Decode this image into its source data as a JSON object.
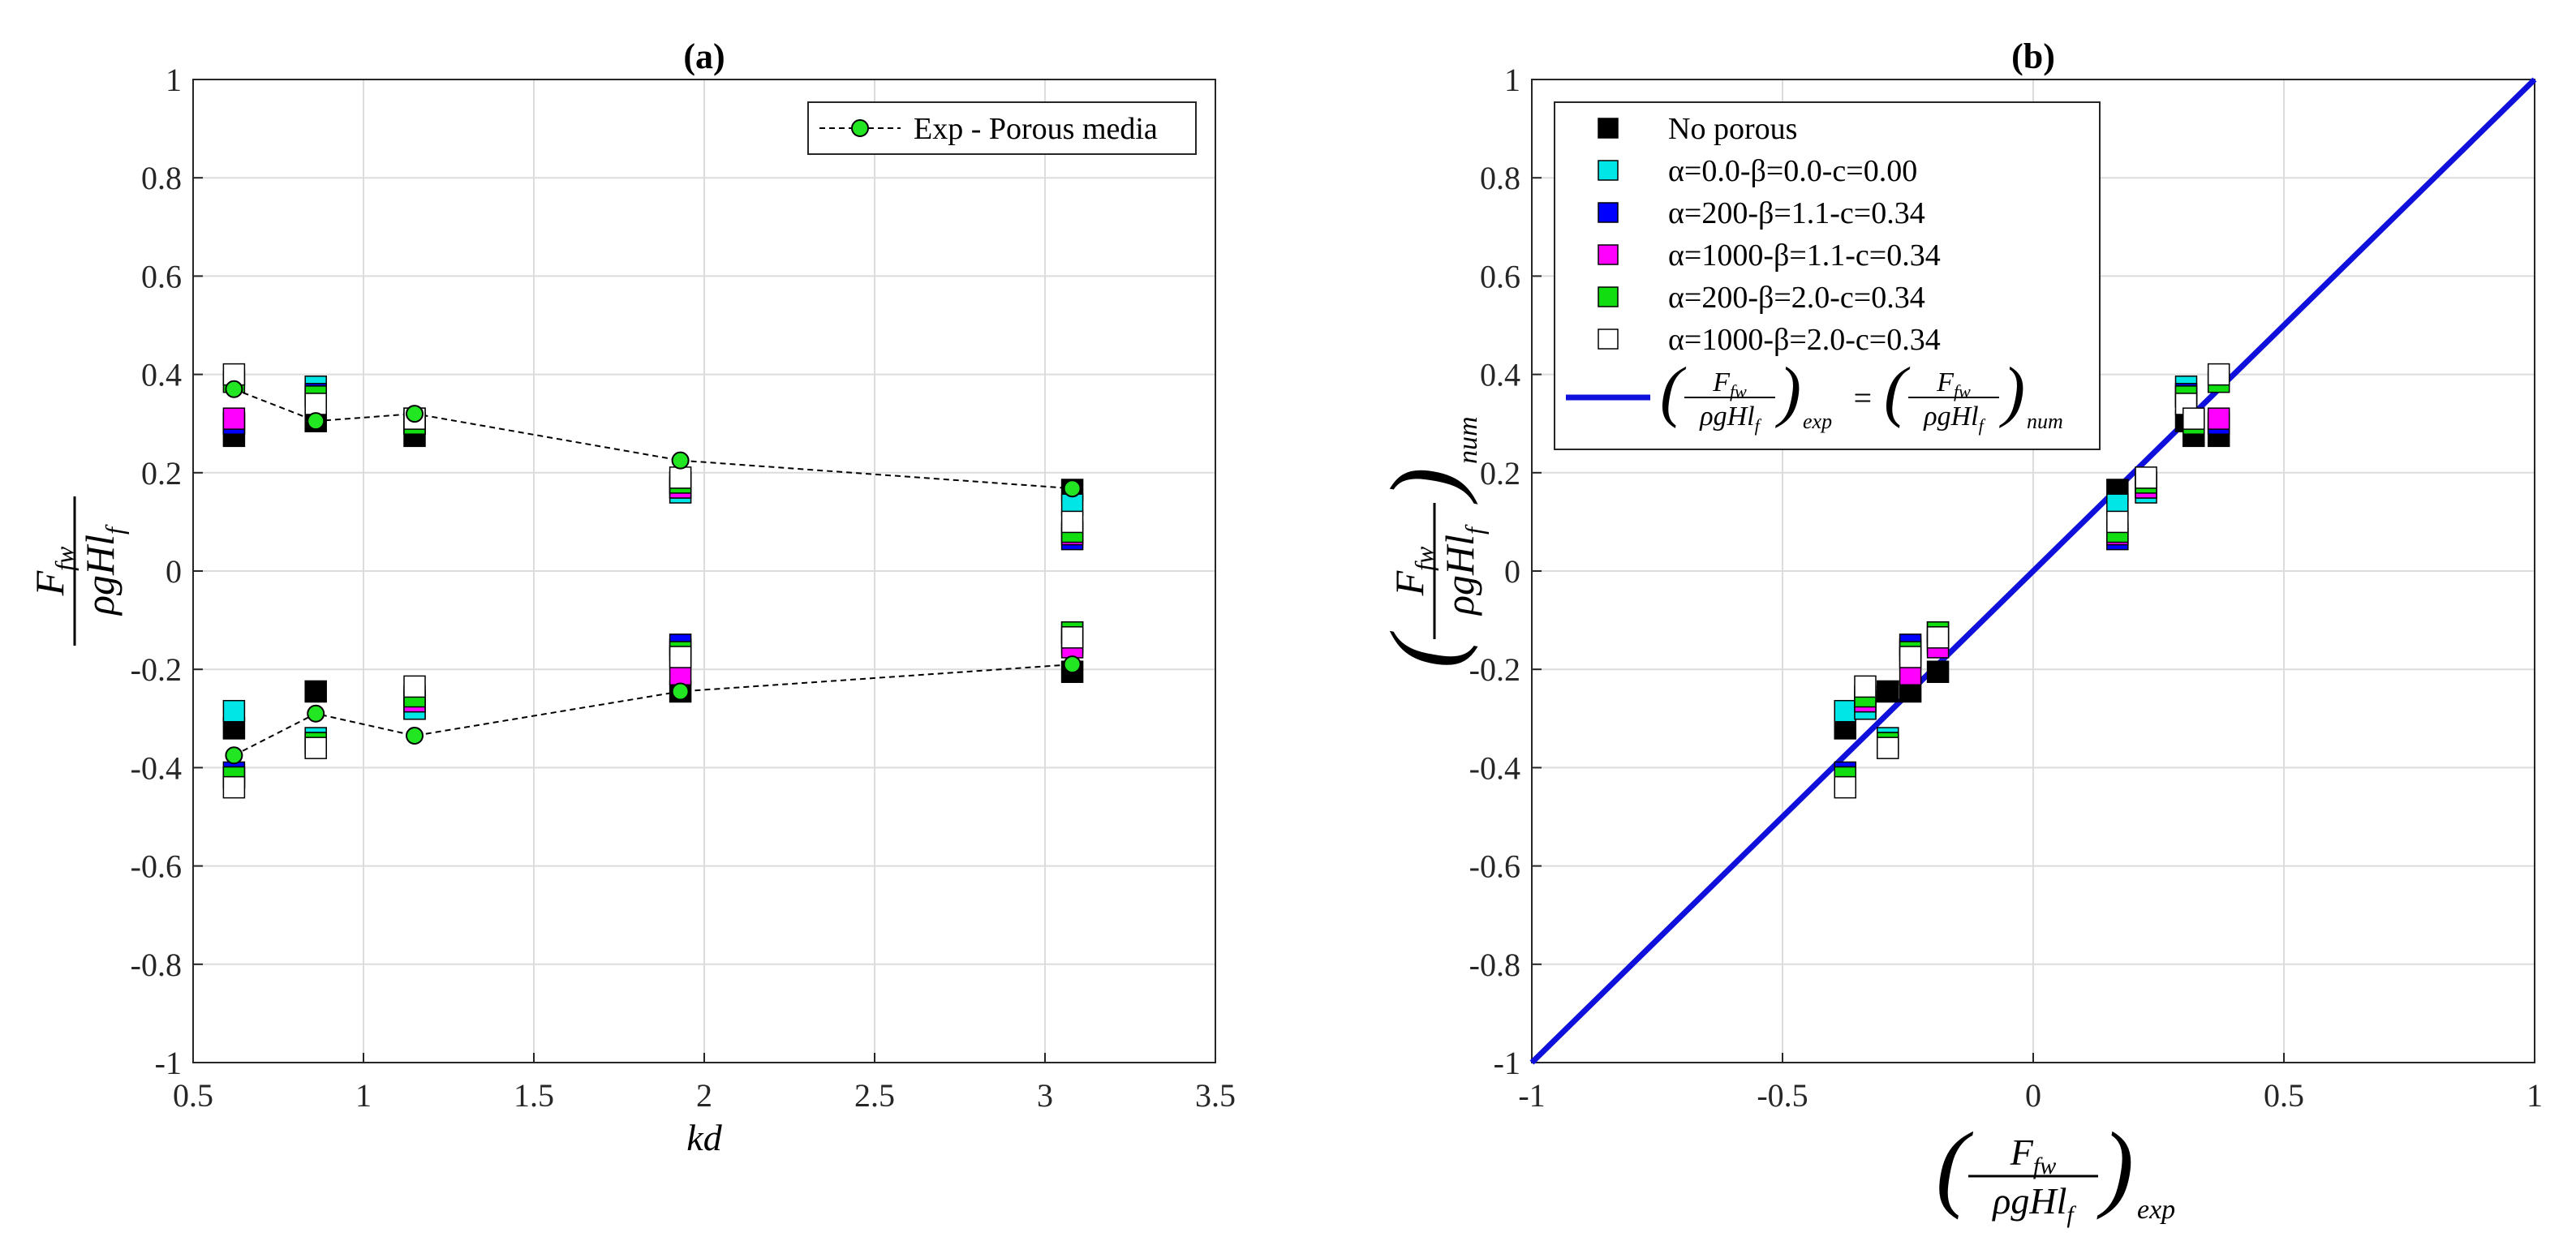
{
  "chart_data": [
    {
      "type": "scatter",
      "title": "(a)",
      "xlabel": "kd",
      "ylabel": "F_fw / (ρgHl_f)",
      "xlim": [
        0.5,
        3.5
      ],
      "ylim": [
        -1,
        1
      ],
      "xticks": [
        "0.5",
        "1",
        "1.5",
        "2",
        "2.5",
        "3",
        "3.5"
      ],
      "yticks": [
        "-1",
        "-0.8",
        "-0.6",
        "-0.4",
        "-0.2",
        "0",
        "0.2",
        "0.4",
        "0.6",
        "0.8",
        "1"
      ],
      "grid": true,
      "legend_location": "top-right",
      "legend": [
        "Exp - Porous media"
      ],
      "exp_series": {
        "name": "Exp - Porous media",
        "color": "#22e622",
        "x": [
          0.62,
          0.86,
          1.15,
          1.93,
          3.08
        ],
        "y_positive": [
          0.37,
          0.305,
          0.32,
          0.225,
          0.168
        ],
        "y_negative": [
          -0.375,
          -0.29,
          -0.335,
          -0.245,
          -0.19
        ]
      },
      "kd": [
        0.62,
        0.86,
        1.15,
        1.93,
        3.08
      ],
      "num_series": [
        {
          "name": "No porous",
          "color": "#000000",
          "pos": [
            0.275,
            0.305,
            0.275,
            0.18,
            0.165
          ],
          "neg": [
            -0.32,
            -0.245,
            -0.28,
            -0.245,
            -0.205
          ]
        },
        {
          "name": "cyan",
          "color": "#00e5e5",
          "pos": [
            0.3,
            0.375,
            0.31,
            0.16,
            0.135
          ],
          "neg": [
            -0.285,
            -0.34,
            -0.28,
            -0.16,
            -0.125
          ]
        },
        {
          "name": "blue",
          "color": "#0000ff",
          "pos": [
            0.3,
            0.36,
            0.3,
            0.17,
            0.065
          ],
          "neg": [
            -0.41,
            -0.35,
            -0.265,
            -0.15,
            -0.145
          ]
        },
        {
          "name": "magenta",
          "color": "#ff00ff",
          "pos": [
            0.31,
            0.355,
            0.3,
            0.17,
            0.075
          ],
          "neg": [
            -0.42,
            -0.355,
            -0.265,
            -0.21,
            -0.155
          ]
        },
        {
          "name": "green",
          "color": "#11dd11",
          "pos": [
            0.385,
            0.355,
            0.3,
            0.18,
            0.08
          ],
          "neg": [
            -0.42,
            -0.35,
            -0.255,
            -0.165,
            -0.125
          ]
        },
        {
          "name": "white",
          "color": "#ffffff",
          "pos": [
            0.4,
            0.34,
            0.31,
            0.19,
            0.1
          ],
          "neg": [
            -0.44,
            -0.36,
            -0.235,
            -0.175,
            -0.135
          ]
        }
      ]
    },
    {
      "type": "scatter",
      "title": "(b)",
      "xlabel": "(F_fw / ρgHl_f)_exp",
      "ylabel": "(F_fw / ρgHl_f)_num",
      "xlim": [
        -1,
        1
      ],
      "ylim": [
        -1,
        1
      ],
      "xticks": [
        "-1",
        "-0.5",
        "0",
        "0.5",
        "1"
      ],
      "yticks": [
        "-1",
        "-0.8",
        "-0.6",
        "-0.4",
        "-0.2",
        "0",
        "0.2",
        "0.4",
        "0.6",
        "0.8",
        "1"
      ],
      "grid": true,
      "legend_location": "top-left",
      "legend": [
        {
          "label": "No porous",
          "color": "#000000"
        },
        {
          "label": "α=0.0-β=0.0-c=0.00",
          "color": "#00e5e5"
        },
        {
          "label": "α=200-β=1.1-c=0.34",
          "color": "#0000ff"
        },
        {
          "label": "α=1000-β=1.1-c=0.34",
          "color": "#ff00ff"
        },
        {
          "label": "α=200-β=2.0-c=0.34",
          "color": "#11dd11"
        },
        {
          "label": "α=1000-β=2.0-c=0.34",
          "color": "#ffffff"
        }
      ],
      "identity_line": {
        "color": "#1010dd",
        "x": [
          -1,
          1
        ],
        "y": [
          -1,
          1
        ]
      },
      "identity_label_subscripts": [
        "exp",
        "num"
      ],
      "exp_pos": [
        0.37,
        0.305,
        0.32,
        0.225,
        0.168
      ],
      "exp_neg": [
        -0.375,
        -0.29,
        -0.335,
        -0.245,
        -0.19
      ]
    }
  ]
}
